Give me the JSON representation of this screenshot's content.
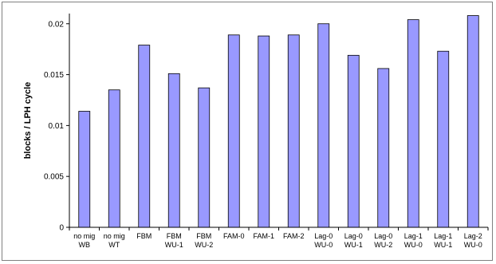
{
  "chart_data": {
    "type": "bar",
    "title": "",
    "xlabel": "",
    "ylabel": "blocks / LPH cycle",
    "ylim": [
      0,
      0.021
    ],
    "yticks": [
      0,
      0.005,
      0.01,
      0.015,
      0.02
    ],
    "ytick_labels": [
      "0",
      "0.005",
      "0.01",
      "0.015",
      "0.02"
    ],
    "grid": false,
    "legend": "none",
    "categories": [
      [
        "no mig",
        "WB"
      ],
      [
        "no mig",
        "WT"
      ],
      [
        "FBM"
      ],
      [
        "FBM",
        "WU-1"
      ],
      [
        "FBM",
        "WU-2"
      ],
      [
        "FAM-0"
      ],
      [
        "FAM-1"
      ],
      [
        "FAM-2"
      ],
      [
        "Lag-0",
        "WU-0"
      ],
      [
        "Lag-0",
        "WU-1"
      ],
      [
        "Lag-0",
        "WU-2"
      ],
      [
        "Lag-1",
        "WU-0"
      ],
      [
        "Lag-1",
        "WU-1"
      ],
      [
        "Lag-2",
        "WU-0"
      ]
    ],
    "values": [
      0.0114,
      0.0135,
      0.0179,
      0.0151,
      0.0137,
      0.0189,
      0.0188,
      0.0189,
      0.02,
      0.0169,
      0.0156,
      0.0204,
      0.0173,
      0.0208
    ],
    "colors": {
      "bar_fill": "#9999ff",
      "bar_stroke": "#000000",
      "axis": "#000000"
    }
  }
}
